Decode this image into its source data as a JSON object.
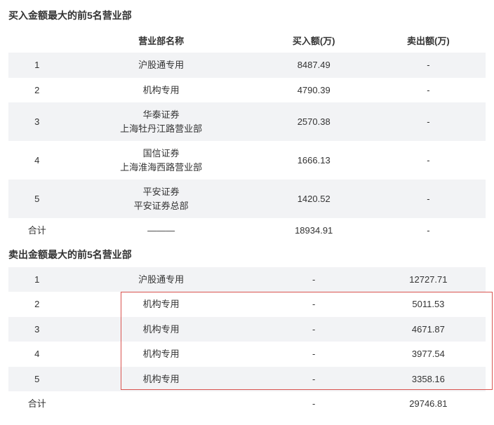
{
  "buy": {
    "title": "买入金额最大的前5名营业部",
    "columns": {
      "name": "营业部名称",
      "buy": "买入额(万)",
      "sell": "卖出额(万)"
    },
    "rows": [
      {
        "idx": "1",
        "name": [
          "沪股通专用"
        ],
        "buy": "8487.49",
        "sell": "-"
      },
      {
        "idx": "2",
        "name": [
          "机构专用"
        ],
        "buy": "4790.39",
        "sell": "-"
      },
      {
        "idx": "3",
        "name": [
          "华泰证券",
          "上海牡丹江路营业部"
        ],
        "buy": "2570.38",
        "sell": "-"
      },
      {
        "idx": "4",
        "name": [
          "国信证券",
          "上海淮海西路营业部"
        ],
        "buy": "1666.13",
        "sell": "-"
      },
      {
        "idx": "5",
        "name": [
          "平安证券",
          "平安证券总部"
        ],
        "buy": "1420.52",
        "sell": "-"
      }
    ],
    "total": {
      "label": "合计",
      "name": "———",
      "buy": "18934.91",
      "sell": "-"
    }
  },
  "sell": {
    "title": "卖出金额最大的前5名营业部",
    "rows": [
      {
        "idx": "1",
        "name": "沪股通专用",
        "buy": "-",
        "sell": "12727.71"
      },
      {
        "idx": "2",
        "name": "机构专用",
        "buy": "-",
        "sell": "5011.53"
      },
      {
        "idx": "3",
        "name": "机构专用",
        "buy": "-",
        "sell": "4671.87"
      },
      {
        "idx": "4",
        "name": "机构专用",
        "buy": "-",
        "sell": "3977.54"
      },
      {
        "idx": "5",
        "name": "机构专用",
        "buy": "-",
        "sell": "3358.16"
      }
    ],
    "total": {
      "label": "合计",
      "name": "",
      "buy": "-",
      "sell": "29746.81"
    }
  },
  "highlight": {
    "color": "#d9534f",
    "top_pct": 16.5,
    "left_pct": 23.5,
    "width_pct": 78,
    "height_pct": 66
  }
}
